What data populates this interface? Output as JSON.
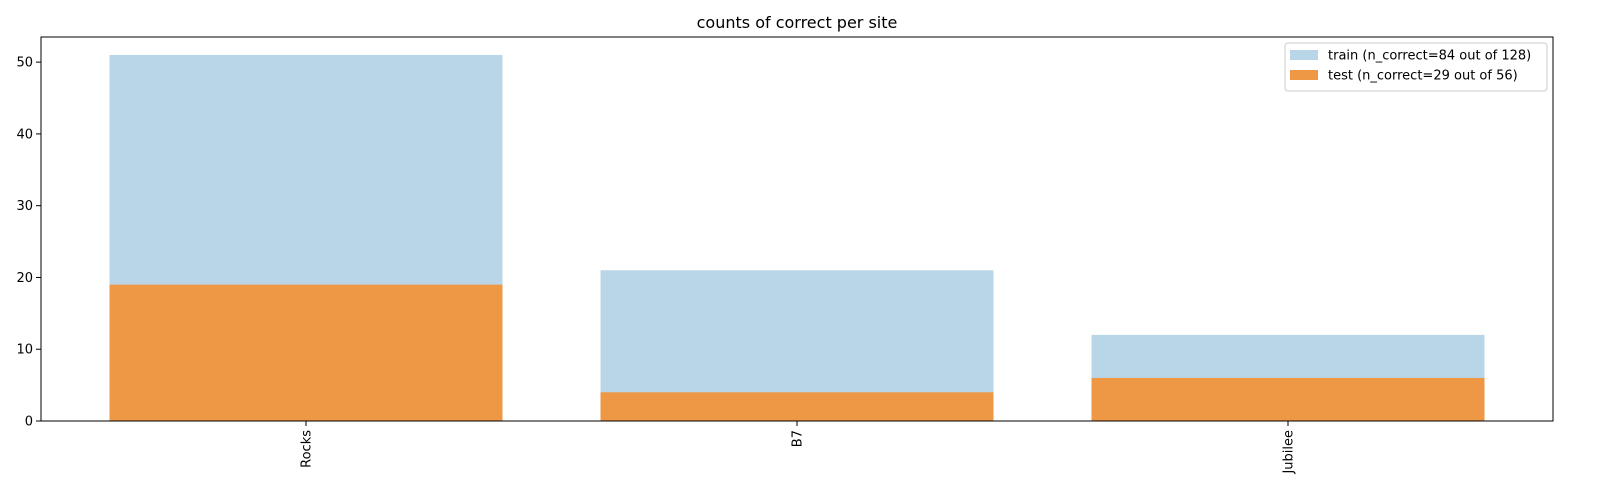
{
  "chart_data": {
    "type": "bar",
    "title": "counts of correct per site",
    "xlabel": "",
    "ylabel": "",
    "categories": [
      "Rocks",
      "B7",
      "Jubilee"
    ],
    "ylim": [
      0,
      53.5
    ],
    "yticks": [
      0,
      10,
      20,
      30,
      40,
      50
    ],
    "grid": false,
    "legend_position": "top-right",
    "bar_mode": "overlay",
    "series": [
      {
        "name": "train (n_correct=84 out of 128)",
        "values": [
          51,
          21,
          12
        ],
        "color": "#b9d5e8"
      },
      {
        "name": "test (n_correct=29 out of 56)",
        "values": [
          19,
          4,
          6
        ],
        "color": "#ee9745"
      }
    ]
  }
}
